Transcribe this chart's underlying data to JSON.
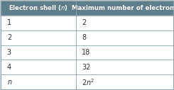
{
  "col1_header": "Electron shell (",
  "col1_header_italic": "n",
  "col1_header_end": ")",
  "col2_header": "Maximum number of electrons",
  "rows": [
    [
      "1",
      "2"
    ],
    [
      "2",
      "8"
    ],
    [
      "3",
      "18"
    ],
    [
      "4",
      "32"
    ],
    [
      "n",
      "2n²"
    ]
  ],
  "header_bg": "#607d8b",
  "header_text_color": "#ffffff",
  "row_bg": "#ffffff",
  "outer_bg": "#cfd8dc",
  "border_color": "#90a4ae",
  "text_color": "#333333",
  "col_split": 0.435,
  "header_fontsize": 6.2,
  "cell_fontsize": 7.0,
  "fig_width": 2.45,
  "fig_height": 1.27,
  "dpi": 100
}
